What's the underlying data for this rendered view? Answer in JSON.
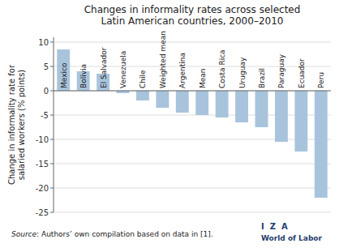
{
  "chart_data": {
    "type": "bar",
    "title": "Changes in informality rates across selected\nLatin American countries, 2000–2010",
    "ylabel": "Change in informality rate for\nsalaried workers (% points)",
    "categories": [
      "Mexico",
      "Bolivia",
      "El Salvador",
      "Venezuela",
      "Chile",
      "Weighted mean",
      "Argentina",
      "Mean",
      "Costa Rica",
      "Uruguay",
      "Brazil",
      "Paraguay",
      "Ecuador",
      "Peru"
    ],
    "values": [
      8.5,
      4.0,
      3.5,
      -0.5,
      -2.0,
      -3.5,
      -4.5,
      -5.0,
      -5.5,
      -6.5,
      -7.5,
      -10.5,
      -12.5,
      -22.0
    ],
    "color": "#A8C4DC",
    "ylim": [
      -25,
      11
    ],
    "yticks": [
      10,
      5,
      0,
      -5,
      -10,
      -15,
      -20,
      -25
    ],
    "grid": true,
    "annotations": [
      "Source",
      ": Authors’ own compilation based on data in [1].",
      "I  Z  A",
      "World of Labor"
    ]
  }
}
